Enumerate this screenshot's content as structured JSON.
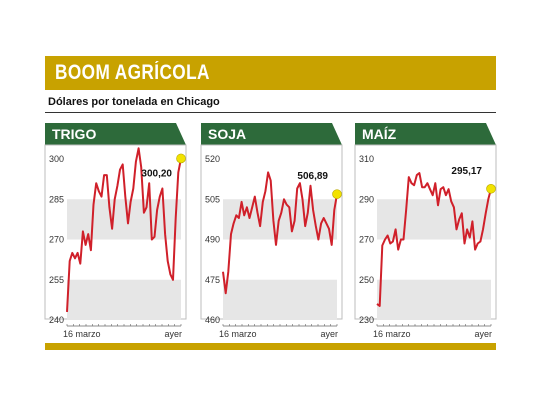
{
  "header": {
    "title": "BOOM AGRÍCOLA",
    "subtitle": "Dólares por tonelada en Chicago"
  },
  "colors": {
    "accent": "#c8a200",
    "panel_header": "#2d6a3a",
    "line": "#d0202a",
    "band": "#e6e6e6",
    "marker": "#f2e200"
  },
  "chart_data": [
    {
      "type": "line",
      "title": "TRIGO",
      "ylim": [
        240,
        300
      ],
      "yticks": [
        240,
        255,
        270,
        285,
        300
      ],
      "xlabels": [
        "16 marzo",
        "ayer"
      ],
      "last_value_label": "300,20",
      "values": [
        243,
        262,
        265,
        263,
        265,
        261,
        273,
        268,
        272,
        266,
        283,
        291,
        288,
        286,
        294,
        294,
        282,
        274,
        285,
        290,
        296,
        298,
        286,
        276,
        284,
        289,
        299,
        304,
        297,
        280,
        282,
        291,
        270,
        271,
        281,
        286,
        289,
        272,
        262,
        257,
        255,
        278,
        295,
        300.2
      ]
    },
    {
      "type": "line",
      "title": "SOJA",
      "ylim": [
        460,
        520
      ],
      "yticks": [
        460,
        475,
        490,
        505,
        520
      ],
      "xlabels": [
        "16 marzo",
        "ayer"
      ],
      "last_value_label": "506,89",
      "values": [
        478,
        470,
        478,
        492,
        496,
        499,
        498,
        504,
        499,
        502,
        498,
        502,
        506,
        500,
        495,
        504,
        508,
        515,
        512,
        497,
        488,
        497,
        500,
        505,
        503,
        502,
        493,
        497,
        509,
        511,
        505,
        495,
        500,
        510,
        501,
        495,
        490,
        496,
        498,
        496,
        494,
        488,
        501,
        506.9
      ]
    },
    {
      "type": "line",
      "title": "MAÍZ",
      "ylim": [
        230,
        310
      ],
      "yticks": [
        230,
        250,
        270,
        290,
        310
      ],
      "xlabels": [
        "16 marzo",
        "ayer"
      ],
      "last_value_label": "295,17",
      "values": [
        238,
        237,
        267,
        270,
        272,
        268,
        269,
        275,
        265,
        270,
        270,
        285,
        301,
        298,
        297,
        302,
        303,
        296,
        296,
        298,
        295,
        292,
        298,
        287,
        295,
        296,
        292,
        295,
        289,
        286,
        275,
        280,
        283,
        268,
        275,
        271,
        279,
        265,
        268,
        269,
        275,
        283,
        290,
        295.2
      ]
    }
  ]
}
